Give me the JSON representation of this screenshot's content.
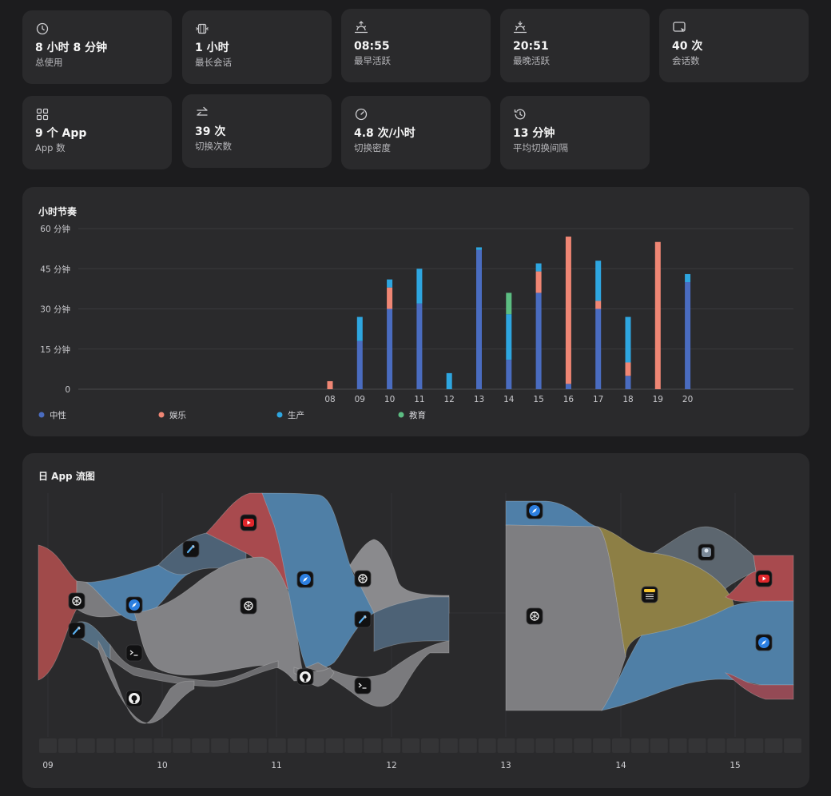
{
  "stats": [
    {
      "icon": "clock-icon",
      "value": "8 小时 8 分钟",
      "label": "总使用"
    },
    {
      "icon": "session-film-icon",
      "value": "1 小时",
      "label": "最长会话"
    },
    {
      "icon": "sunrise-icon",
      "value": "08:55",
      "label": "最早活跃"
    },
    {
      "icon": "sunset-icon",
      "value": "20:51",
      "label": "最晚活跃"
    },
    {
      "icon": "cursor-window-icon",
      "value": "40 次",
      "label": "会话数"
    },
    {
      "icon": "app-grid-icon",
      "value": "9 个 App",
      "label": "App 数"
    },
    {
      "icon": "switch-arrows-icon",
      "value": "39 次",
      "label": "切换次数"
    },
    {
      "icon": "speedometer-icon",
      "value": "4.8 次/小时",
      "label": "切换密度"
    },
    {
      "icon": "history-icon",
      "value": "13 分钟",
      "label": "平均切换间隔"
    }
  ],
  "hourly": {
    "title": "小时节奏",
    "legend": [
      {
        "name": "中性",
        "color": "#4a6cc0"
      },
      {
        "name": "娱乐",
        "color": "#ef8674"
      },
      {
        "name": "生产",
        "color": "#2ea6e0"
      },
      {
        "name": "教育",
        "color": "#5cbd82"
      }
    ]
  },
  "chart_data": {
    "type": "bar",
    "stacked": true,
    "title": "小时节奏",
    "categories": [
      "08",
      "09",
      "10",
      "11",
      "12",
      "13",
      "14",
      "15",
      "16",
      "17",
      "18",
      "19",
      "20"
    ],
    "ylim": [
      0,
      60
    ],
    "ytick_labels": [
      "0",
      "15 分钟",
      "30 分钟",
      "45 分钟",
      "60 分钟"
    ],
    "yticks": [
      0,
      15,
      30,
      45,
      60
    ],
    "grid": true,
    "legend_position": "bottom",
    "series": [
      {
        "name": "中性",
        "values": [
          0,
          18,
          30,
          32,
          0,
          52,
          11,
          36,
          2,
          30,
          5,
          0,
          40
        ]
      },
      {
        "name": "娱乐",
        "values": [
          3,
          0,
          8,
          0,
          0,
          0,
          0,
          8,
          55,
          3,
          5,
          55,
          0
        ]
      },
      {
        "name": "生产",
        "values": [
          0,
          9,
          3,
          13,
          6,
          1,
          17,
          3,
          0,
          15,
          17,
          0,
          3
        ]
      },
      {
        "name": "教育",
        "values": [
          0,
          0,
          0,
          0,
          0,
          0,
          8,
          0,
          0,
          0,
          0,
          0,
          0
        ]
      }
    ]
  },
  "flow": {
    "title": "日 App 流图",
    "time_labels": [
      "09",
      "10",
      "11",
      "12",
      "13",
      "14",
      "15"
    ]
  }
}
